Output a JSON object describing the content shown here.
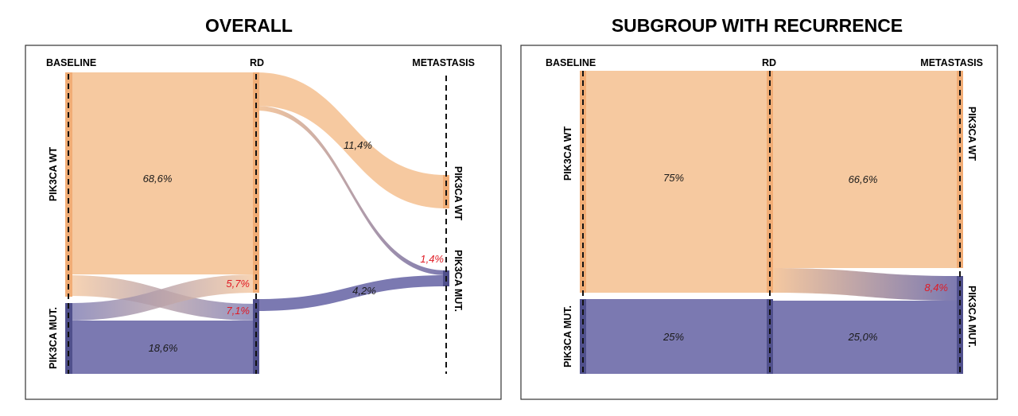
{
  "colors": {
    "wt": "#f6c9a0",
    "wt_bar": "#f1ad76",
    "mut": "#7b79b1",
    "mut_bar": "#50508c",
    "highlight": "#e01b24"
  },
  "panels": [
    {
      "title": "OVERALL",
      "stages": [
        "BASELINE",
        "RD",
        "METASTASIS"
      ],
      "baseline_nodes": [
        "PIK3CA WT",
        "PIK3CA MUT."
      ],
      "metastasis_nodes": [
        "PIK3CA WT",
        "PIK3CA MUT."
      ],
      "flows": [
        {
          "from": "PIK3CA WT",
          "to": "PIK3CA WT",
          "stage": "BASELINE → RD",
          "label": "68,6%",
          "highlight": false
        },
        {
          "from": "PIK3CA WT",
          "to": "PIK3CA MUT.",
          "stage": "BASELINE → RD",
          "label": "7,1%",
          "highlight": true
        },
        {
          "from": "PIK3CA MUT.",
          "to": "PIK3CA WT",
          "stage": "BASELINE → RD",
          "label": "5,7%",
          "highlight": true
        },
        {
          "from": "PIK3CA MUT.",
          "to": "PIK3CA MUT.",
          "stage": "BASELINE → RD",
          "label": "18,6%",
          "highlight": false
        },
        {
          "from": "PIK3CA WT",
          "to": "PIK3CA WT",
          "stage": "RD → METASTASIS",
          "label": "11,4%",
          "highlight": false
        },
        {
          "from": "PIK3CA WT",
          "to": "PIK3CA MUT.",
          "stage": "RD → METASTASIS",
          "label": "1,4%",
          "highlight": true
        },
        {
          "from": "PIK3CA MUT.",
          "to": "PIK3CA MUT.",
          "stage": "RD → METASTASIS",
          "label": "4,2%",
          "highlight": false
        }
      ]
    },
    {
      "title": "SUBGROUP WITH RECURRENCE",
      "stages": [
        "BASELINE",
        "RD",
        "METASTASIS"
      ],
      "baseline_nodes": [
        "PIK3CA WT",
        "PIK3CA MUT."
      ],
      "metastasis_nodes": [
        "PIK3CA WT",
        "PIK3CA MUT."
      ],
      "flows": [
        {
          "from": "PIK3CA WT",
          "to": "PIK3CA WT",
          "stage": "BASELINE → RD",
          "label": "75%",
          "highlight": false
        },
        {
          "from": "PIK3CA MUT.",
          "to": "PIK3CA MUT.",
          "stage": "BASELINE → RD",
          "label": "25%",
          "highlight": false
        },
        {
          "from": "PIK3CA WT",
          "to": "PIK3CA WT",
          "stage": "RD → METASTASIS",
          "label": "66,6%",
          "highlight": false
        },
        {
          "from": "PIK3CA WT",
          "to": "PIK3CA MUT.",
          "stage": "RD → METASTASIS",
          "label": "8,4%",
          "highlight": true
        },
        {
          "from": "PIK3CA MUT.",
          "to": "PIK3CA MUT.",
          "stage": "RD → METASTASIS",
          "label": "25,0%",
          "highlight": false
        }
      ]
    }
  ]
}
